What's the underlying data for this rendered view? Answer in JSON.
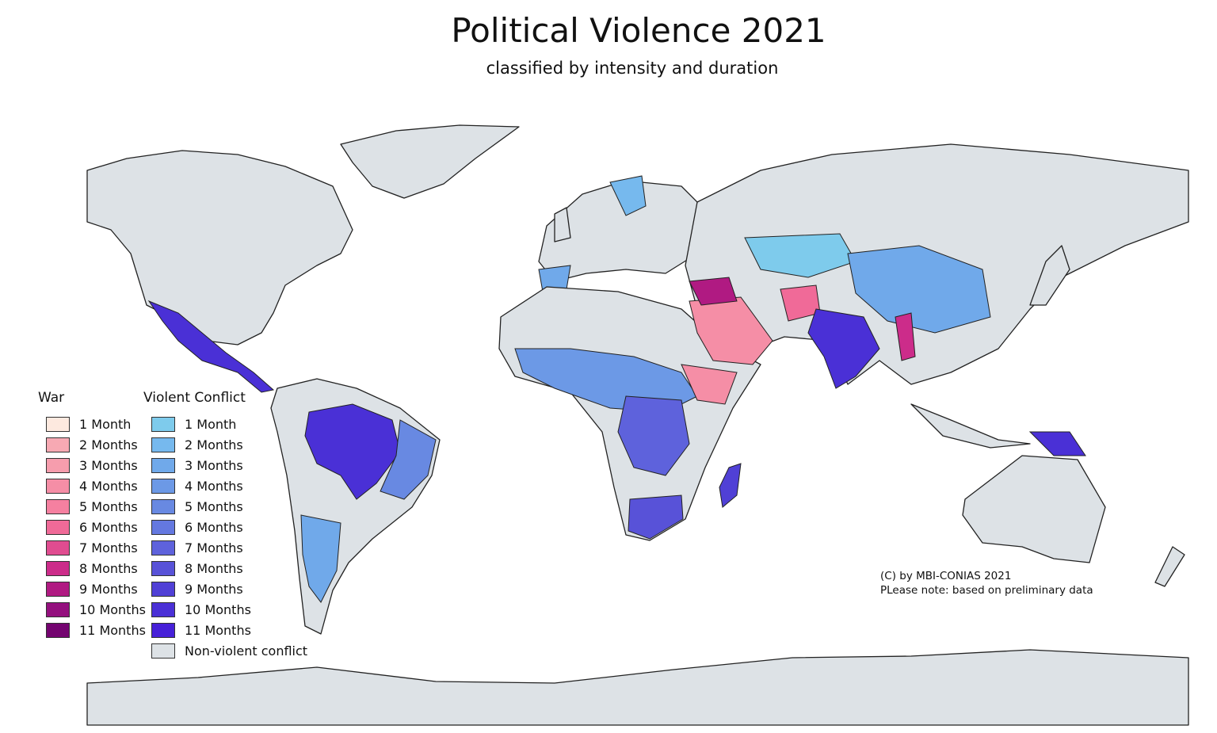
{
  "title": "Political Violence 2021",
  "subtitle": "classified by intensity and duration",
  "legend": {
    "war": {
      "heading": "War",
      "items": [
        {
          "label": "1 Month",
          "color": "#fde9df"
        },
        {
          "label": "2 Months",
          "color": "#f7a9b3"
        },
        {
          "label": "3 Months",
          "color": "#f69dad"
        },
        {
          "label": "4 Months",
          "color": "#f58ea6"
        },
        {
          "label": "5 Months",
          "color": "#f580a0"
        },
        {
          "label": "6 Months",
          "color": "#f06a98"
        },
        {
          "label": "7 Months",
          "color": "#e04c90"
        },
        {
          "label": "8 Months",
          "color": "#cc2c8a"
        },
        {
          "label": "9 Months",
          "color": "#b01a82"
        },
        {
          "label": "10 Months",
          "color": "#94107e"
        },
        {
          "label": "11 Months",
          "color": "#740470"
        }
      ]
    },
    "violent_conflict": {
      "heading": "Violent Conflict",
      "items": [
        {
          "label": "1 Month",
          "color": "#7ecbec"
        },
        {
          "label": "2 Months",
          "color": "#76b9ee"
        },
        {
          "label": "3 Months",
          "color": "#70a9ea"
        },
        {
          "label": "4 Months",
          "color": "#6c99e6"
        },
        {
          "label": "5 Months",
          "color": "#6889e2"
        },
        {
          "label": "6 Months",
          "color": "#6478e0"
        },
        {
          "label": "7 Months",
          "color": "#5e62dc"
        },
        {
          "label": "8 Months",
          "color": "#5852d8"
        },
        {
          "label": "9 Months",
          "color": "#5040d6"
        },
        {
          "label": "10 Months",
          "color": "#4a30d6"
        },
        {
          "label": "11 Months",
          "color": "#4620d8"
        },
        {
          "label": "Non-violent conflict",
          "color": "#dde2e6"
        }
      ]
    }
  },
  "credit": {
    "line1": "(C) by MBI-CONIAS 2021",
    "line2": "PLease note: based on preliminary data"
  }
}
